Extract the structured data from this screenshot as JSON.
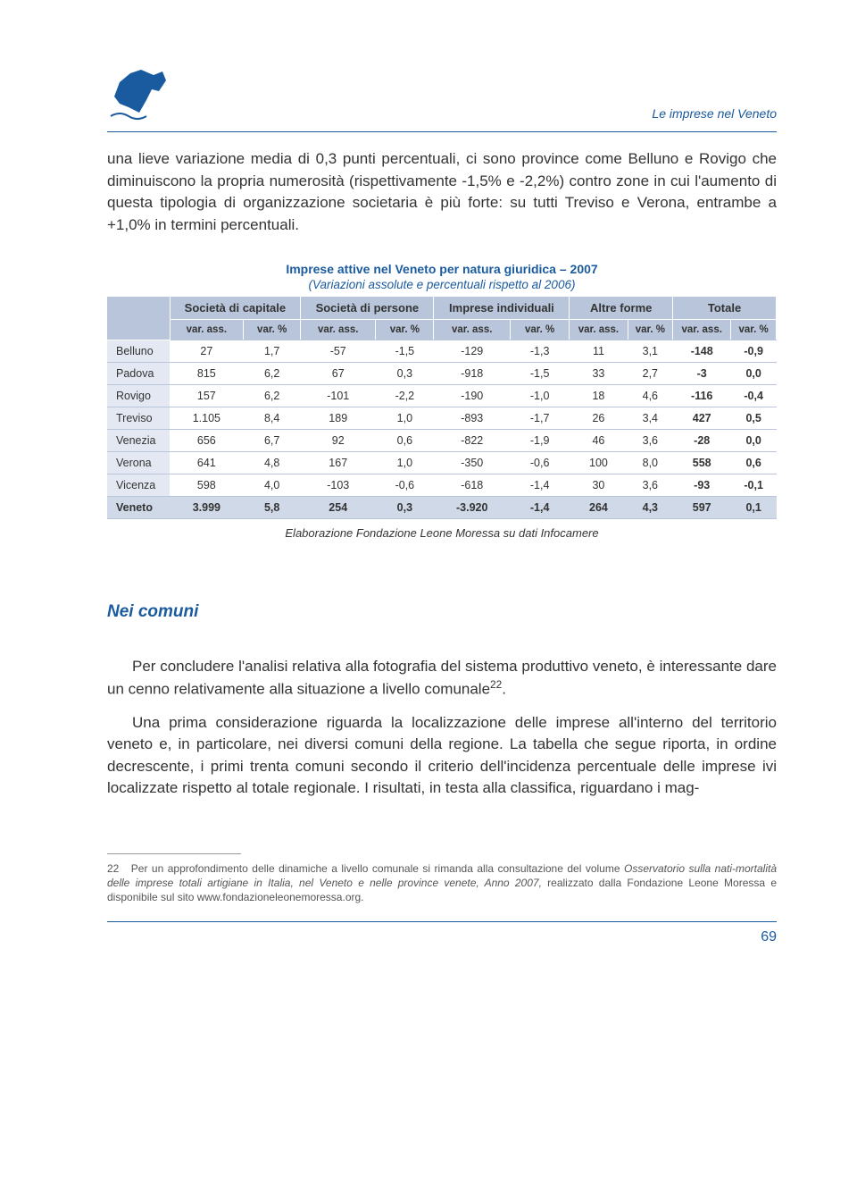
{
  "header": {
    "title": "Le imprese nel Veneto"
  },
  "paragraphs": {
    "p1": "una lieve variazione media di 0,3 punti percentuali, ci sono province come Belluno e Rovigo che diminuiscono la propria numerosità (rispettivamente -1,5% e -2,2%) contro zone in cui l'aumento di questa tipologia di organizzazione societaria è più forte: su tutti Treviso e Verona, entrambe a +1,0% in termini percentuali."
  },
  "table": {
    "title": "Imprese attive nel Veneto per natura giuridica – 2007",
    "subtitle": "(Variazioni assolute e percentuali rispetto al 2006)",
    "group_headers": [
      "",
      "Società di capitale",
      "Società di persone",
      "Imprese individuali",
      "Altre forme",
      "Totale"
    ],
    "sub_headers": [
      "var. ass.",
      "var. %"
    ],
    "rows": [
      {
        "label": "Belluno",
        "cells": [
          "27",
          "1,7",
          "-57",
          "-1,5",
          "-129",
          "-1,3",
          "11",
          "3,1",
          "-148",
          "-0,9"
        ]
      },
      {
        "label": "Padova",
        "cells": [
          "815",
          "6,2",
          "67",
          "0,3",
          "-918",
          "-1,5",
          "33",
          "2,7",
          "-3",
          "0,0"
        ]
      },
      {
        "label": "Rovigo",
        "cells": [
          "157",
          "6,2",
          "-101",
          "-2,2",
          "-190",
          "-1,0",
          "18",
          "4,6",
          "-116",
          "-0,4"
        ]
      },
      {
        "label": "Treviso",
        "cells": [
          "1.105",
          "8,4",
          "189",
          "1,0",
          "-893",
          "-1,7",
          "26",
          "3,4",
          "427",
          "0,5"
        ]
      },
      {
        "label": "Venezia",
        "cells": [
          "656",
          "6,7",
          "92",
          "0,6",
          "-822",
          "-1,9",
          "46",
          "3,6",
          "-28",
          "0,0"
        ]
      },
      {
        "label": "Verona",
        "cells": [
          "641",
          "4,8",
          "167",
          "1,0",
          "-350",
          "-0,6",
          "100",
          "8,0",
          "558",
          "0,6"
        ]
      },
      {
        "label": "Vicenza",
        "cells": [
          "598",
          "4,0",
          "-103",
          "-0,6",
          "-618",
          "-1,4",
          "30",
          "3,6",
          "-93",
          "-0,1"
        ]
      }
    ],
    "total_row": {
      "label": "Veneto",
      "cells": [
        "3.999",
        "5,8",
        "254",
        "0,3",
        "-3.920",
        "-1,4",
        "264",
        "4,3",
        "597",
        "0,1"
      ]
    },
    "source": "Elaborazione Fondazione Leone Moressa su dati Infocamere"
  },
  "section": {
    "heading": "Nei comuni",
    "p2": "Per concludere l'analisi relativa alla fotografia del sistema produttivo veneto, è interessante dare un cenno relativamente alla situazione a livello comunale",
    "p2_sup": "22",
    "p2_end": ".",
    "p3": "Una prima considerazione riguarda la localizzazione delle imprese all'interno del territorio veneto e, in particolare, nei diversi comuni della regione. La tabella che segue riporta, in ordine decrescente, i primi trenta comuni secondo il criterio dell'incidenza percentuale delle imprese ivi localizzate rispetto al totale regionale. I risultati, in testa alla classifica, riguardano i mag-"
  },
  "footnote": {
    "num": "22",
    "text_a": "Per un approfondimento delle dinamiche a livello comunale si rimanda alla consultazione del volume ",
    "italic": "Osservatorio sulla nati-mortalità delle imprese totali artigiane in Italia, nel Veneto e nelle province venete, Anno 2007,",
    "text_b": " realizzato dalla Fondazione Leone Moressa e disponibile sul sito www.fondazioneleonemoressa.org."
  },
  "page_number": "69",
  "colors": {
    "accent": "#1a5a9e",
    "th_bg": "#b8c5da",
    "row_label_bg": "#e3e8f2",
    "total_bg": "#d0d9e8"
  }
}
